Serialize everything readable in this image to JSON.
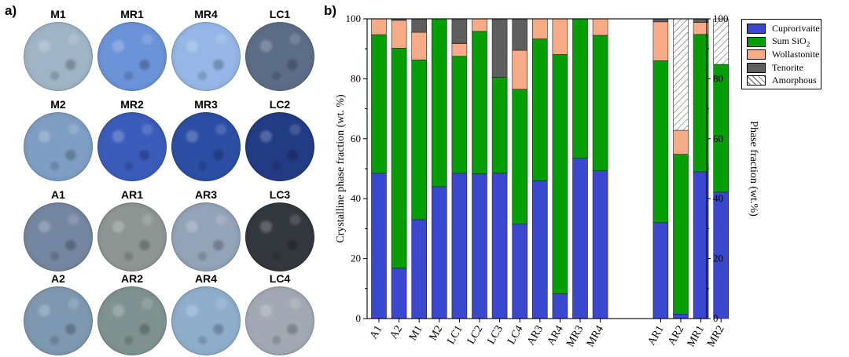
{
  "panel_a_label": "a)",
  "panel_b_label": "b)",
  "samples": [
    {
      "label": "M1",
      "color": "#9fb4c6"
    },
    {
      "label": "MR1",
      "color": "#6b93d8"
    },
    {
      "label": "MR4",
      "color": "#95b6e6"
    },
    {
      "label": "LC1",
      "color": "#5c6d87"
    },
    {
      "label": "M2",
      "color": "#7e9ec4"
    },
    {
      "label": "MR2",
      "color": "#3c5cbc"
    },
    {
      "label": "MR3",
      "color": "#2c4ea4"
    },
    {
      "label": "LC2",
      "color": "#223c84"
    },
    {
      "label": "A1",
      "color": "#7486a1"
    },
    {
      "label": "AR1",
      "color": "#8d9692"
    },
    {
      "label": "AR3",
      "color": "#93a3b8"
    },
    {
      "label": "LC3",
      "color": "#33383f"
    },
    {
      "label": "A2",
      "color": "#7e98b1"
    },
    {
      "label": "AR2",
      "color": "#7f9291"
    },
    {
      "label": "AR4",
      "color": "#8eaecc"
    },
    {
      "label": "LC4",
      "color": "#a2a9b5"
    }
  ],
  "colors": {
    "Cuprorivaite": "#3a48cf",
    "Sum SiO2": "#069e06",
    "Wollastonite": "#f7aa86",
    "Tenorite": "#5e5e5e",
    "Amorphous": "#ffffff"
  },
  "legend": [
    {
      "key": "Cuprorivaite",
      "label": "Cuprorivaite",
      "subscript": ""
    },
    {
      "key": "Sum SiO2",
      "label": "Sum SiO",
      "subscript": "2"
    },
    {
      "key": "Wollastonite",
      "label": "Wollastonite",
      "subscript": ""
    },
    {
      "key": "Tenorite",
      "label": "Tenorite",
      "subscript": ""
    },
    {
      "key": "Amorphous",
      "label": "Amorphous",
      "subscript": ""
    }
  ],
  "chart_data": {
    "type": "bar",
    "stacked": true,
    "ylabel_left": "Crystalline phase fraction (wt. %)",
    "ylabel_right": "Phase fraction (wt.%)",
    "ylim": [
      0,
      100
    ],
    "yticks": [
      0,
      20,
      40,
      60,
      80,
      100
    ],
    "groups": [
      {
        "name": "crystalline",
        "categories": [
          "A1",
          "A2",
          "M1",
          "M2",
          "LC1",
          "LC2",
          "LC3",
          "LC4",
          "AR3",
          "AR4",
          "MR3",
          "MR4"
        ],
        "series": [
          {
            "name": "Cuprorivaite",
            "values": [
              48.5,
              16.8,
              33.0,
              44.0,
              48.5,
              48.3,
              48.5,
              31.5,
              46.0,
              8.3,
              53.5,
              49.3
            ]
          },
          {
            "name": "Sum SiO2",
            "values": [
              46.2,
              73.4,
              53.3,
              56.0,
              39.0,
              47.5,
              32.0,
              45.0,
              47.3,
              79.8,
              46.5,
              45.2
            ]
          },
          {
            "name": "Wollastonite",
            "values": [
              5.3,
              9.3,
              9.2,
              0.0,
              4.2,
              4.2,
              0.0,
              13.0,
              6.7,
              11.9,
              0.0,
              5.5
            ]
          },
          {
            "name": "Tenorite",
            "values": [
              0.0,
              0.5,
              4.5,
              0.0,
              8.3,
              0.0,
              19.5,
              10.5,
              0.0,
              0.0,
              0.0,
              0.0
            ]
          }
        ]
      },
      {
        "name": "total",
        "categories": [
          "AR1",
          "AR2",
          "MR1",
          "MR2"
        ],
        "series": [
          {
            "name": "Cuprorivaite",
            "values": [
              32.0,
              1.5,
              49.0,
              42.2
            ]
          },
          {
            "name": "Sum SiO2",
            "values": [
              54.0,
              53.3,
              45.8,
              42.6
            ]
          },
          {
            "name": "Wollastonite",
            "values": [
              13.0,
              8.0,
              4.0,
              0.0
            ]
          },
          {
            "name": "Tenorite",
            "values": [
              1.0,
              0.0,
              1.2,
              0.0
            ]
          },
          {
            "name": "Amorphous",
            "values": [
              0.0,
              37.2,
              0.0,
              15.2
            ]
          }
        ]
      }
    ]
  }
}
